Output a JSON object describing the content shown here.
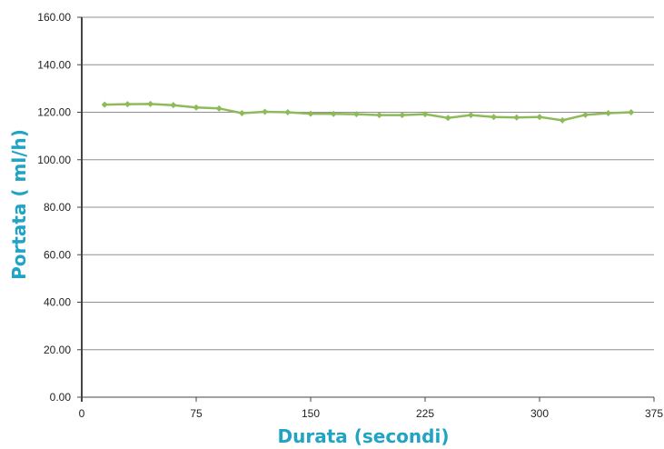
{
  "chart_data": {
    "type": "line",
    "title": "",
    "xlabel": "Durata (secondi)",
    "ylabel": "Portata ( ml/h)",
    "xlim": [
      0,
      375
    ],
    "ylim": [
      0,
      160
    ],
    "x_ticks": [
      "0",
      "75",
      "150",
      "225",
      "300",
      "375"
    ],
    "y_ticks": [
      "0.00",
      "20.00",
      "40.00",
      "60.00",
      "80.00",
      "100.00",
      "120.00",
      "140.00",
      "160.00"
    ],
    "grid": "horizontal",
    "legend": "none",
    "series": [
      {
        "color": "#8dbb5a",
        "marker": "diamond",
        "x": [
          15,
          30,
          45,
          60,
          75,
          90,
          105,
          120,
          135,
          150,
          165,
          180,
          195,
          210,
          225,
          240,
          255,
          270,
          285,
          300,
          315,
          330,
          345,
          360
        ],
        "y": [
          123.2,
          123.4,
          123.5,
          123.0,
          122.0,
          121.6,
          119.6,
          120.2,
          120.0,
          119.4,
          119.3,
          119.2,
          118.8,
          118.8,
          119.2,
          117.6,
          118.8,
          118.0,
          117.8,
          118.0,
          116.6,
          118.9,
          119.6,
          120.0
        ]
      }
    ]
  },
  "colors": {
    "axis_title": "#21a4c4",
    "gridline": "#909090",
    "axis": "#444444"
  }
}
